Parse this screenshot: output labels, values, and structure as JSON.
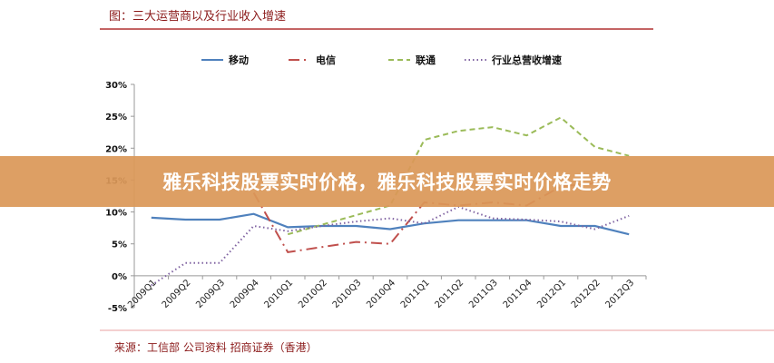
{
  "chart_data": {
    "type": "line",
    "title": "图：三大运营商以及行业收入增速",
    "source": "来源：工信部 公司资料 招商证券（香港）",
    "categories": [
      "2009Q1",
      "2009Q2",
      "2009Q3",
      "2009Q4",
      "2010Q1",
      "2010Q2",
      "2010Q3",
      "2010Q4",
      "2011Q1",
      "2011Q2",
      "2011Q3",
      "2011Q4",
      "2012Q1",
      "2012Q2",
      "2012Q3"
    ],
    "ylim": [
      -5,
      30
    ],
    "yticks": [
      "-5%",
      "0%",
      "5%",
      "10%",
      "15%",
      "20%",
      "25%",
      "30%"
    ],
    "ytick_values": [
      -5,
      0,
      5,
      10,
      15,
      20,
      25,
      30
    ],
    "legend_position": "top",
    "series": [
      {
        "name": "移动",
        "color": "#4f81bd",
        "style": "solid",
        "values": [
          9.1,
          8.8,
          8.8,
          9.7,
          7.6,
          7.8,
          7.8,
          7.3,
          8.2,
          8.7,
          8.7,
          8.7,
          7.8,
          7.8,
          6.5
        ]
      },
      {
        "name": "电信",
        "color": "#c0504d",
        "style": "dashdot",
        "values": [
          null,
          null,
          null,
          13.0,
          3.7,
          4.5,
          5.3,
          5.0,
          11.5,
          11.0,
          11.5,
          11.0,
          14.0,
          14.5,
          null
        ]
      },
      {
        "name": "联通",
        "color": "#9bbb59",
        "style": "dashed",
        "values": [
          null,
          null,
          null,
          null,
          6.5,
          8.0,
          9.5,
          11.0,
          21.3,
          22.7,
          23.3,
          22.0,
          24.8,
          20.2,
          18.8
        ]
      },
      {
        "name": "行业总营收增速",
        "color": "#8064a2",
        "style": "dotted",
        "values": [
          -1.5,
          2.0,
          2.0,
          7.8,
          7.0,
          7.8,
          8.5,
          9.0,
          8.2,
          10.8,
          9.0,
          8.8,
          8.5,
          7.3,
          9.4
        ]
      }
    ]
  },
  "banner": {
    "text": "雅乐科技股票实时价格，雅乐科技股票实时价格走势",
    "color": "#da9858"
  }
}
